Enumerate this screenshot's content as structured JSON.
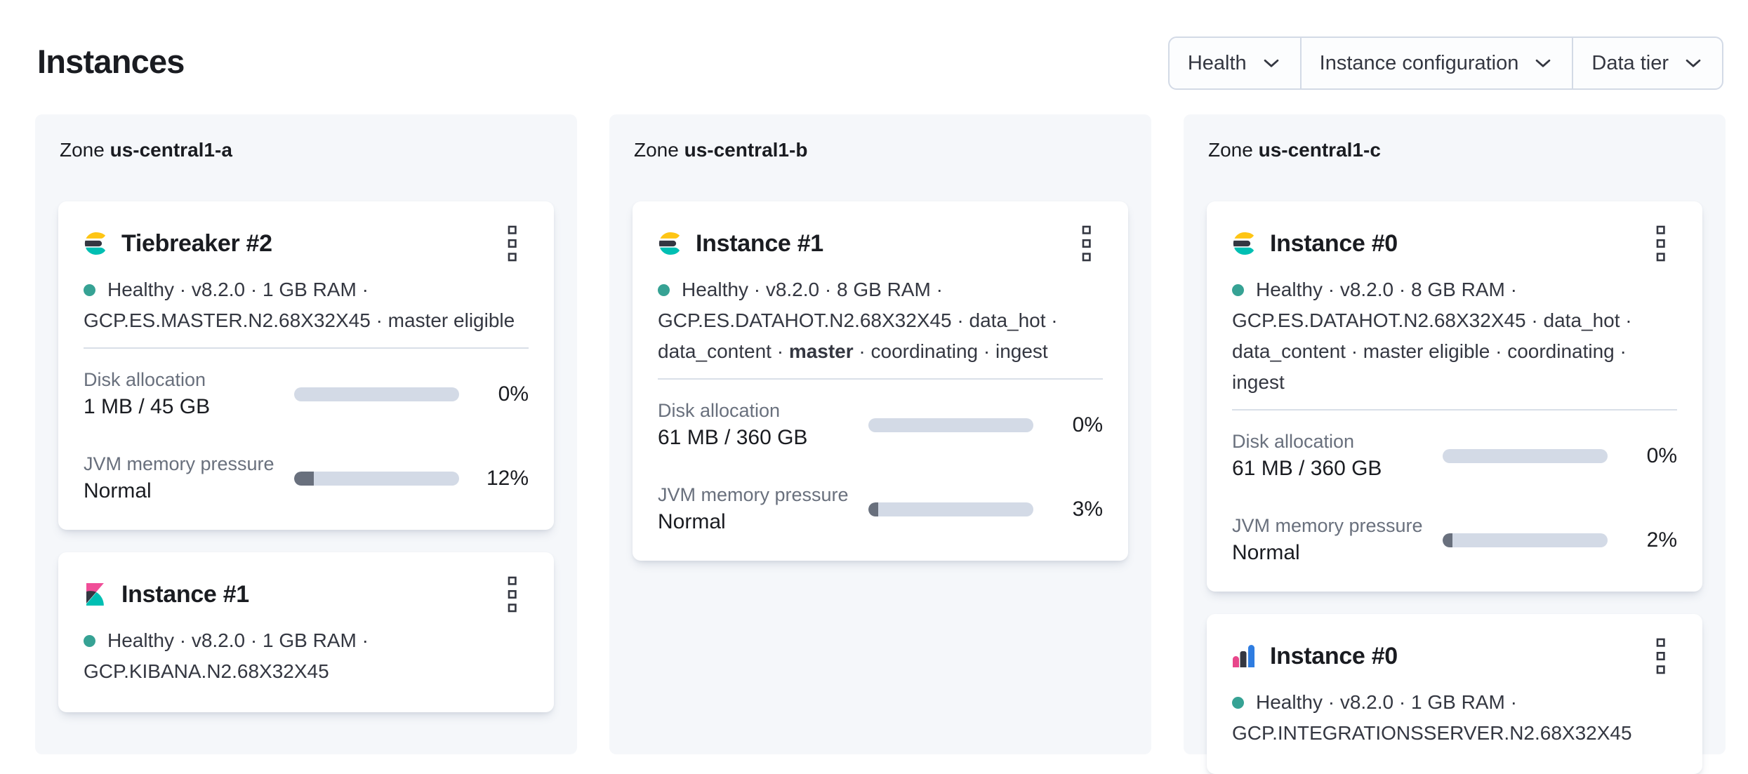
{
  "header": {
    "title": "Instances"
  },
  "filters": [
    {
      "label": "Health"
    },
    {
      "label": "Instance configuration"
    },
    {
      "label": "Data tier"
    }
  ],
  "colors": {
    "brand_yellow": "#fec514",
    "brand_dark": "#343741",
    "brand_teal": "#00bfb3",
    "brand_pink": "#f04e98",
    "brand_blue": "#2f7de1",
    "health_dot": "#36a294",
    "bar_track": "#d3dae6",
    "bar_fill": "#69707d",
    "panel_bg": "#f5f7fa"
  },
  "zones": [
    {
      "label_prefix": "Zone",
      "name": "us-central1-a",
      "cards": [
        {
          "logo": "elasticsearch-logo",
          "title": "Tiebreaker #2",
          "status_lines": [
            [
              {
                "text": "Healthy · v8.2.0 · 1 GB RAM ·"
              }
            ],
            [
              {
                "text": "GCP.ES.MASTER.N2.68X32X45 · master eligible"
              }
            ]
          ],
          "metrics": [
            {
              "label": "Disk allocation",
              "value": "1 MB / 45 GB",
              "percent": 0,
              "percent_label": "0%"
            },
            {
              "label": "JVM memory pressure",
              "value": "Normal",
              "percent": 12,
              "percent_label": "12%"
            }
          ]
        },
        {
          "logo": "kibana-logo",
          "title": "Instance #1",
          "status_lines": [
            [
              {
                "text": "Healthy · v8.2.0 · 1 GB RAM ·"
              }
            ],
            [
              {
                "text": "GCP.KIBANA.N2.68X32X45"
              }
            ]
          ],
          "metrics": null
        }
      ]
    },
    {
      "label_prefix": "Zone",
      "name": "us-central1-b",
      "cards": [
        {
          "logo": "elasticsearch-logo",
          "title": "Instance #1",
          "status_lines": [
            [
              {
                "text": "Healthy · v8.2.0 · 8 GB RAM ·"
              }
            ],
            [
              {
                "text": "GCP.ES.DATAHOT.N2.68X32X45 · data_hot ·"
              }
            ],
            [
              {
                "text": "data_content · "
              },
              {
                "text": "master",
                "bold": true
              },
              {
                "text": " · coordinating · ingest"
              }
            ]
          ],
          "metrics": [
            {
              "label": "Disk allocation",
              "value": "61 MB / 360 GB",
              "percent": 0,
              "percent_label": "0%"
            },
            {
              "label": "JVM memory pressure",
              "value": "Normal",
              "percent": 3,
              "percent_label": "3%"
            }
          ]
        }
      ]
    },
    {
      "label_prefix": "Zone",
      "name": "us-central1-c",
      "cards": [
        {
          "logo": "elasticsearch-logo",
          "title": "Instance #0",
          "status_lines": [
            [
              {
                "text": "Healthy · v8.2.0 · 8 GB RAM ·"
              }
            ],
            [
              {
                "text": "GCP.ES.DATAHOT.N2.68X32X45 · data_hot ·"
              }
            ],
            [
              {
                "text": "data_content · master eligible · coordinating · ingest"
              }
            ]
          ],
          "metrics": [
            {
              "label": "Disk allocation",
              "value": "61 MB / 360 GB",
              "percent": 0,
              "percent_label": "0%"
            },
            {
              "label": "JVM memory pressure",
              "value": "Normal",
              "percent": 2,
              "percent_label": "2%"
            }
          ]
        },
        {
          "logo": "integrations-server-logo",
          "title": "Instance #0",
          "status_lines": [
            [
              {
                "text": "Healthy · v8.2.0 · 1 GB RAM ·"
              }
            ],
            [
              {
                "text": "GCP.INTEGRATIONSSERVER.N2.68X32X45"
              }
            ]
          ],
          "metrics": null
        }
      ]
    }
  ]
}
